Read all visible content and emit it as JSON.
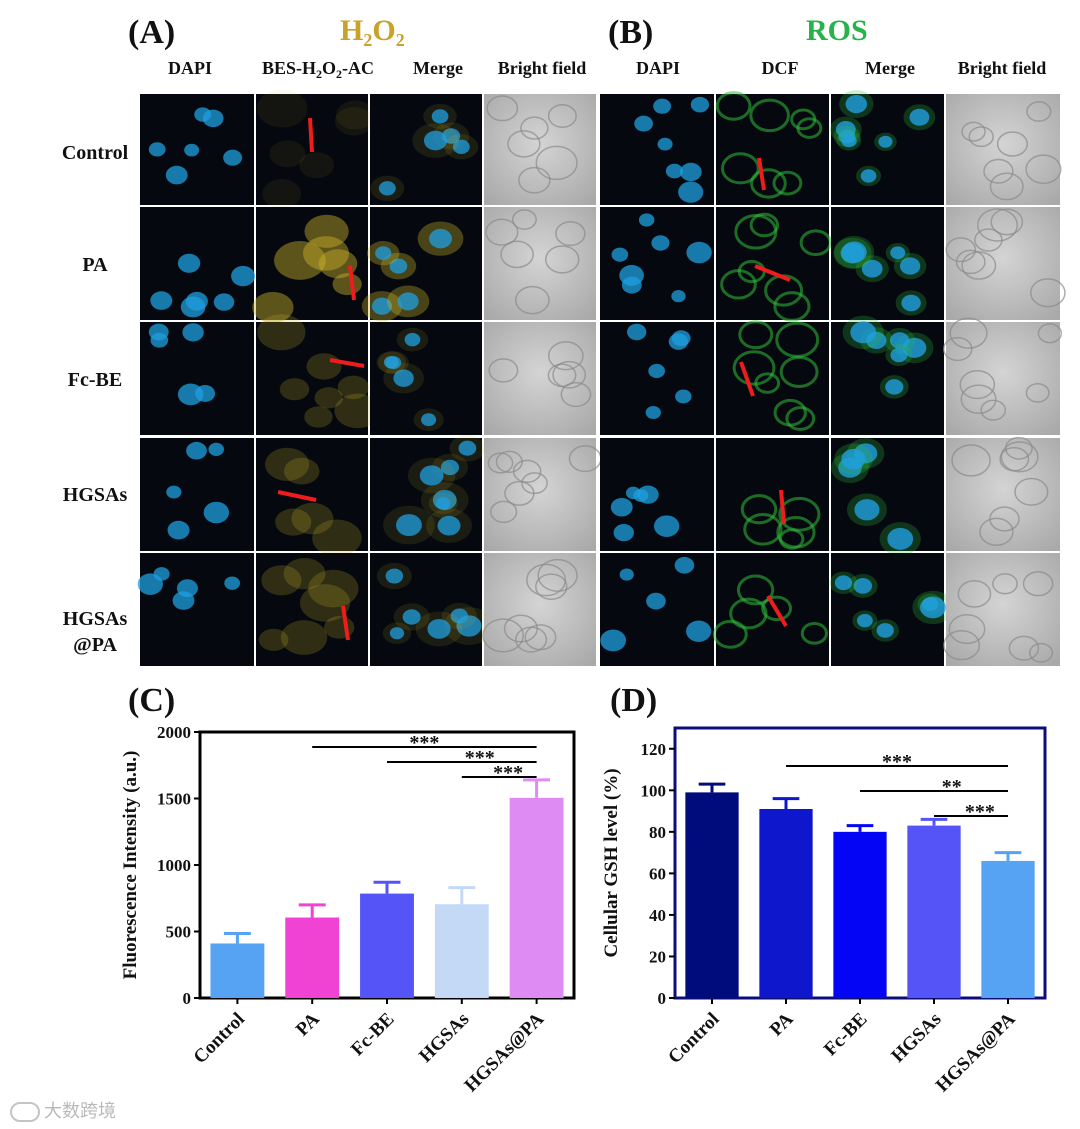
{
  "panelA": {
    "label": "(A)",
    "heading": {
      "main": "H",
      "sub1": "2",
      "mid": "O",
      "sub2": "2",
      "color": "#c9a22a"
    },
    "columns": [
      {
        "pre": "DAPI"
      },
      {
        "pre": "BES-H",
        "sub1": "2",
        "mid": "O",
        "sub2": "2",
        "post": "-AC"
      },
      {
        "pre": "Merge"
      },
      {
        "pre": "Bright field"
      }
    ]
  },
  "panelB": {
    "label": "(B)",
    "heading": {
      "main": "ROS",
      "color": "#27b34a"
    },
    "columns": [
      "DAPI",
      "DCF",
      "Merge",
      "Bright field"
    ]
  },
  "rows": [
    "Control",
    "PA",
    "Fc-BE",
    "HGSAs",
    "HGSAs\n@PA"
  ],
  "micro_colors": {
    "dapi": "#1f9fe0",
    "bes": "#c9b22a",
    "dcf": "#2fbf3a",
    "marker": "#ee1c1c"
  },
  "chart_data": [
    {
      "type": "bar",
      "label": "(C)",
      "categories": [
        "Control",
        "PA",
        "Fc-BE",
        "HGSAs",
        "HGSAs@PA"
      ],
      "values": [
        410,
        605,
        785,
        705,
        1505
      ],
      "errors": [
        75,
        95,
        85,
        125,
        135
      ],
      "colors": [
        "#55a3f2",
        "#f043d4",
        "#5454f7",
        "#c3d9f5",
        "#de8cf4"
      ],
      "ylabel": "Fluorescence Intensity (a.u.)",
      "xlabel": "",
      "ylim": [
        0,
        2000
      ],
      "yticks": [
        0,
        500,
        1000,
        1500,
        2000
      ],
      "significance": [
        {
          "from": "PA",
          "to": "HGSAs@PA",
          "label": "***"
        },
        {
          "from": "Fc-BE",
          "to": "HGSAs@PA",
          "label": "***"
        },
        {
          "from": "HGSAs",
          "to": "HGSAs@PA",
          "label": "***"
        }
      ],
      "frame_color": "#000000"
    },
    {
      "type": "bar",
      "label": "(D)",
      "categories": [
        "Control",
        "PA",
        "Fc-BE",
        "HGSAs",
        "HGSAs@PA"
      ],
      "values": [
        99,
        91,
        80,
        83,
        66
      ],
      "errors": [
        4,
        5,
        3,
        3,
        4
      ],
      "colors": [
        "#000b7c",
        "#0f17cc",
        "#0505f5",
        "#5454f7",
        "#55a3f2"
      ],
      "ylabel": "Cellular GSH level (%)",
      "xlabel": "",
      "ylim": [
        0,
        130
      ],
      "yticks": [
        0,
        20,
        40,
        60,
        80,
        100,
        120
      ],
      "significance": [
        {
          "from": "PA",
          "to": "HGSAs@PA",
          "label": "***"
        },
        {
          "from": "Fc-BE",
          "to": "HGSAs@PA",
          "label": "**"
        },
        {
          "from": "HGSAs",
          "to": "HGSAs@PA",
          "label": "***"
        }
      ],
      "frame_color": "#0d0d7a"
    }
  ],
  "watermark": "大数跨境"
}
